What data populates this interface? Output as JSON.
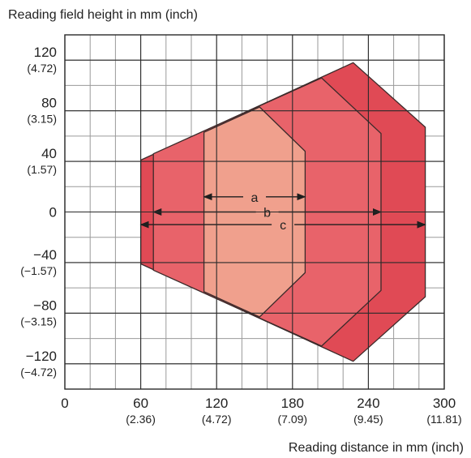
{
  "chart_data": {
    "type": "area",
    "title": "",
    "ylabel": "Reading field height in mm (inch)",
    "xlabel": "Reading distance in mm (inch)",
    "xlim": [
      0,
      300
    ],
    "ylim": [
      -140,
      140
    ],
    "grid": true,
    "grid_minor_x": 20,
    "grid_minor_y": 20,
    "x_ticks": [
      {
        "value": 0,
        "label": "0",
        "sub": ""
      },
      {
        "value": 60,
        "label": "60",
        "sub": "(2.36)"
      },
      {
        "value": 120,
        "label": "120",
        "sub": "(4.72)"
      },
      {
        "value": 180,
        "label": "180",
        "sub": "(7.09)"
      },
      {
        "value": 240,
        "label": "240",
        "sub": "(9.45)"
      },
      {
        "value": 300,
        "label": "300",
        "sub": "(11.81)"
      }
    ],
    "y_ticks": [
      {
        "value": 120,
        "label": "120",
        "sub": "(4.72)"
      },
      {
        "value": 80,
        "label": "80",
        "sub": "(3.15)"
      },
      {
        "value": 40,
        "label": "40",
        "sub": "(1.57)"
      },
      {
        "value": 0,
        "label": "0",
        "sub": ""
      },
      {
        "value": -40,
        "label": "−40",
        "sub": "(−1.57)"
      },
      {
        "value": -80,
        "label": "−80",
        "sub": "(−3.15)"
      },
      {
        "value": -120,
        "label": "−120",
        "sub": "(−4.72)"
      }
    ],
    "fields": [
      {
        "label": "c",
        "color": "#e04a55",
        "stroke": "#3b2a2a",
        "points": [
          [
            60,
            41
          ],
          [
            228,
            118
          ],
          [
            285,
            67
          ],
          [
            285,
            -67
          ],
          [
            228,
            -118
          ],
          [
            60,
            -41
          ]
        ],
        "range": [
          60,
          285
        ],
        "dim_y": -10
      },
      {
        "label": "b",
        "color": "#e8636a",
        "stroke": "#3b2a2a",
        "points": [
          [
            70,
            46
          ],
          [
            203,
            106
          ],
          [
            250,
            62
          ],
          [
            250,
            -62
          ],
          [
            203,
            -106
          ],
          [
            70,
            -46
          ]
        ],
        "range": [
          70,
          250
        ],
        "dim_y": 0
      },
      {
        "label": "a",
        "color": "#f0a08d",
        "stroke": "#3b2a2a",
        "points": [
          [
            110,
            63
          ],
          [
            154,
            83
          ],
          [
            190,
            48
          ],
          [
            190,
            -48
          ],
          [
            154,
            -83
          ],
          [
            110,
            -63
          ]
        ],
        "range": [
          110,
          190
        ],
        "dim_y": 12
      }
    ],
    "colors": {
      "grid": "#9a9a9a",
      "frame": "#2a2a2a",
      "dimension": "#1e1e1e"
    }
  }
}
